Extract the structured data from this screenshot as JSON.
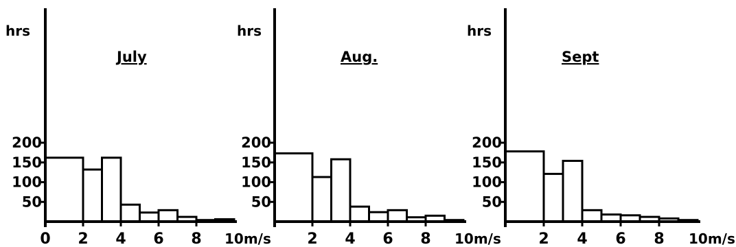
{
  "chart_data": [
    {
      "type": "bar",
      "title": "July",
      "ylabel": "hrs",
      "xlabel": "",
      "x_unit_label": "10m/s",
      "y_ticks": [
        50,
        100,
        150,
        200
      ],
      "x_ticks": [
        "0",
        "2",
        "4",
        "6",
        "8"
      ],
      "ylim": [
        0,
        270
      ],
      "xlim": [
        0,
        10
      ],
      "bins": [
        [
          0,
          2
        ],
        [
          2,
          3
        ],
        [
          3,
          4
        ],
        [
          4,
          5
        ],
        [
          5,
          6
        ],
        [
          6,
          7
        ],
        [
          7,
          8
        ],
        [
          8,
          9
        ],
        [
          9,
          10
        ]
      ],
      "values": [
        162,
        132,
        162,
        43,
        23,
        29,
        12,
        4,
        6
      ]
    },
    {
      "type": "bar",
      "title": "Aug.",
      "ylabel": "hrs",
      "xlabel": "",
      "x_unit_label": "10m/s",
      "y_ticks": [
        50,
        100,
        150,
        200
      ],
      "x_ticks": [
        "2",
        "4",
        "6",
        "8"
      ],
      "ylim": [
        0,
        270
      ],
      "xlim": [
        0,
        10
      ],
      "bins": [
        [
          0,
          2
        ],
        [
          2,
          3
        ],
        [
          3,
          4
        ],
        [
          4,
          5
        ],
        [
          5,
          6
        ],
        [
          6,
          7
        ],
        [
          7,
          8
        ],
        [
          8,
          9
        ],
        [
          9,
          10
        ]
      ],
      "values": [
        173,
        113,
        158,
        38,
        24,
        29,
        11,
        15,
        4
      ]
    },
    {
      "type": "bar",
      "title": "Sept",
      "ylabel": "hrs",
      "xlabel": "",
      "x_unit_label": "10m/s",
      "y_ticks": [
        50,
        100,
        150,
        200
      ],
      "x_ticks": [
        "2",
        "4",
        "6",
        "8"
      ],
      "ylim": [
        0,
        270
      ],
      "xlim": [
        0,
        10
      ],
      "bins": [
        [
          0,
          2
        ],
        [
          2,
          3
        ],
        [
          3,
          4
        ],
        [
          4,
          5
        ],
        [
          5,
          6
        ],
        [
          6,
          7
        ],
        [
          7,
          8
        ],
        [
          8,
          9
        ],
        [
          9,
          10
        ]
      ],
      "values": [
        178,
        121,
        154,
        29,
        18,
        16,
        12,
        8,
        4
      ]
    }
  ]
}
